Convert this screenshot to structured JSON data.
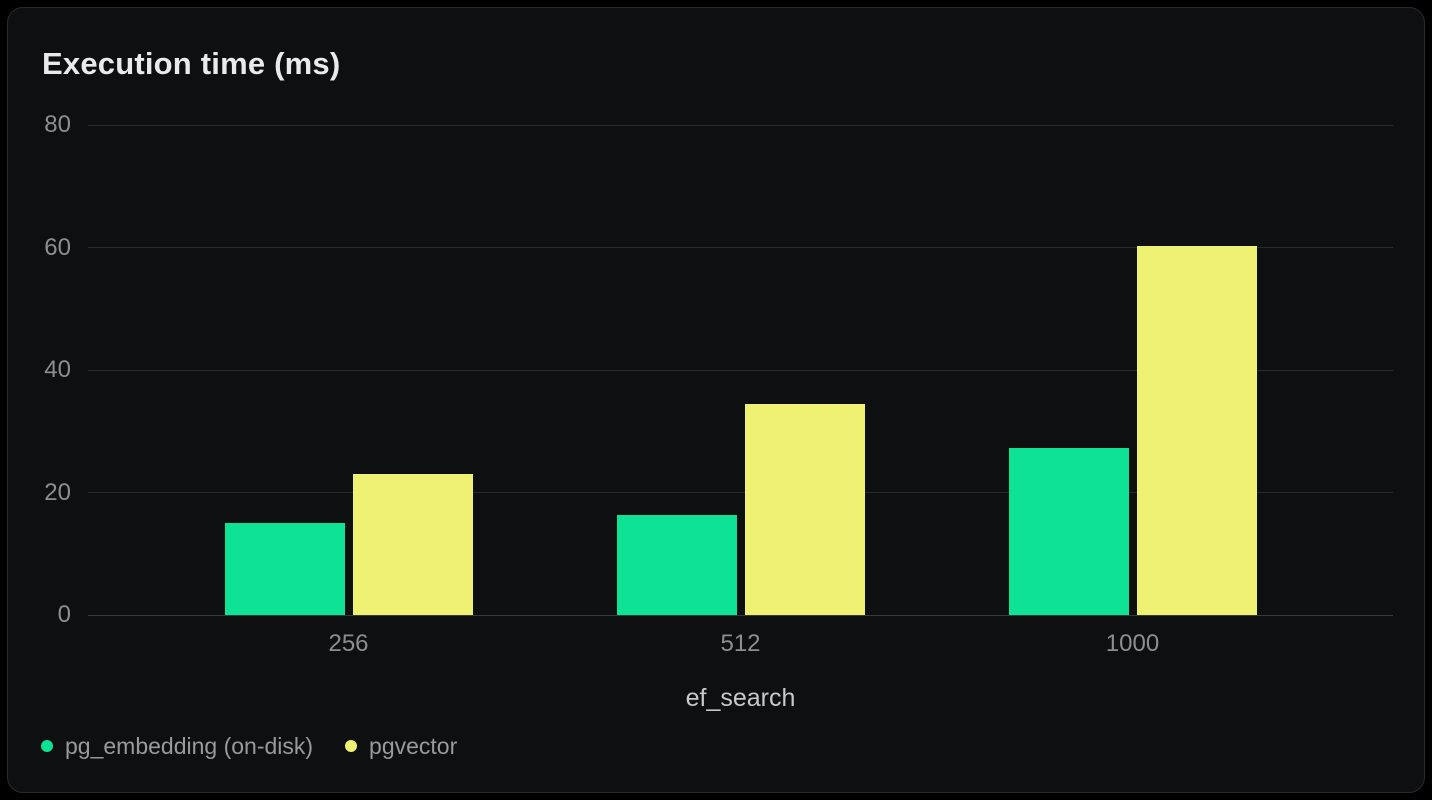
{
  "chart_data": {
    "type": "bar",
    "title": "Execution time (ms)",
    "xlabel": "ef_search",
    "ylabel": "",
    "categories": [
      "256",
      "512",
      "1000"
    ],
    "series": [
      {
        "name": "pg_embedding (on-disk)",
        "color": "#0de295",
        "values": [
          15,
          16.3,
          27.3
        ]
      },
      {
        "name": "pgvector",
        "color": "#eff173",
        "values": [
          23,
          34.4,
          60.3
        ]
      }
    ],
    "ylim": [
      0,
      80
    ],
    "yticks": [
      0,
      20,
      40,
      60,
      80
    ],
    "grid": true,
    "legend_position": "bottom-left",
    "background_color": "#0e0f10",
    "gridline_color": "#292a2a",
    "title_color": "#e9ebeb",
    "tick_label_color": "#8b8f8f",
    "axis_title_color": "#c5c9c9",
    "legend_text_color": "#969b9b"
  }
}
